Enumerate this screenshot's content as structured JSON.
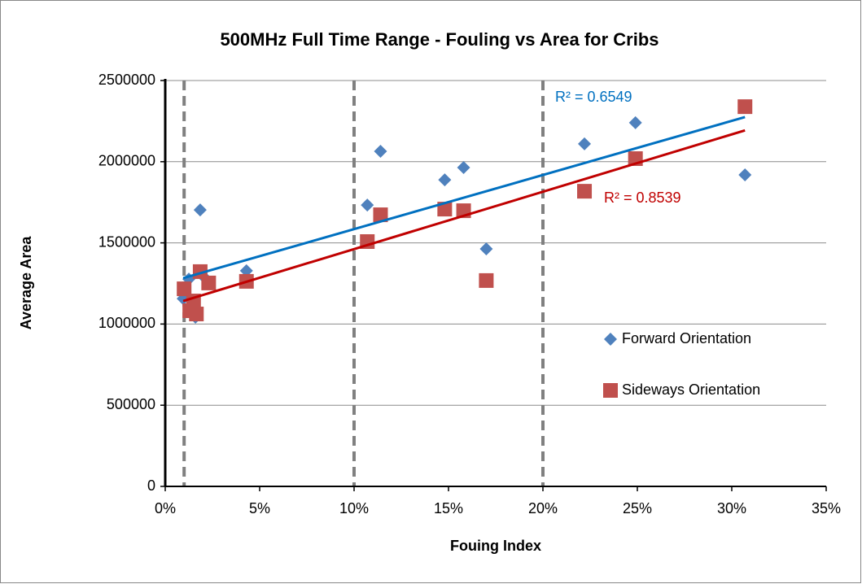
{
  "chart_data": {
    "type": "scatter",
    "title": "500MHz Full Time Range - Fouling vs Area for Cribs",
    "x_label": "Fouing Index",
    "y_label": "Average Area",
    "xlim": [
      0,
      35
    ],
    "xticks": [
      {
        "value": 0,
        "label": "0%"
      },
      {
        "value": 5,
        "label": "5%"
      },
      {
        "value": 10,
        "label": "10%"
      },
      {
        "value": 15,
        "label": "15%"
      },
      {
        "value": 20,
        "label": "20%"
      },
      {
        "value": 25,
        "label": "25%"
      },
      {
        "value": 30,
        "label": "30%"
      },
      {
        "value": 35,
        "label": "35%"
      }
    ],
    "ylim": [
      0,
      2500000
    ],
    "yticks": [
      0,
      500000,
      1000000,
      1500000,
      2000000,
      2500000
    ],
    "grid": true,
    "legend": "right",
    "reference_lines": [
      1,
      10,
      20
    ],
    "series": [
      {
        "name": "Forward Orientation",
        "color": "#4f81bd",
        "marker": "diamond",
        "x": [
          0.95,
          1.25,
          1.6,
          1.85,
          2.15,
          4.3,
          10.7,
          11.4,
          14.8,
          15.8,
          17.0,
          22.2,
          24.9,
          30.7
        ],
        "values": [
          1157000,
          1277000,
          1042000,
          1703000,
          1278000,
          1328000,
          1733000,
          2064000,
          1888000,
          1964000,
          1463000,
          2110000,
          2240000,
          1919000
        ],
        "trendline": {
          "color": "#0070c0",
          "x": [
            0.95,
            30.7
          ],
          "values": [
            1283000,
            2275000
          ],
          "r2_label": "R² = 0.6549"
        }
      },
      {
        "name": "Sideways Orientation",
        "color": "#c0504d",
        "marker": "square",
        "x": [
          1.0,
          1.3,
          1.5,
          1.65,
          1.85,
          2.3,
          4.3,
          10.7,
          11.4,
          14.8,
          15.8,
          17.0,
          22.2,
          24.9,
          30.7
        ],
        "values": [
          1217000,
          1082000,
          1142000,
          1062000,
          1323000,
          1253000,
          1263000,
          1508000,
          1673000,
          1708000,
          1698000,
          1268000,
          1818000,
          2019000,
          2339000
        ],
        "trendline": {
          "color": "#c00000",
          "x": [
            0.95,
            30.7
          ],
          "values": [
            1142000,
            2193000
          ],
          "r2_label": "R² = 0.8539"
        }
      }
    ]
  }
}
